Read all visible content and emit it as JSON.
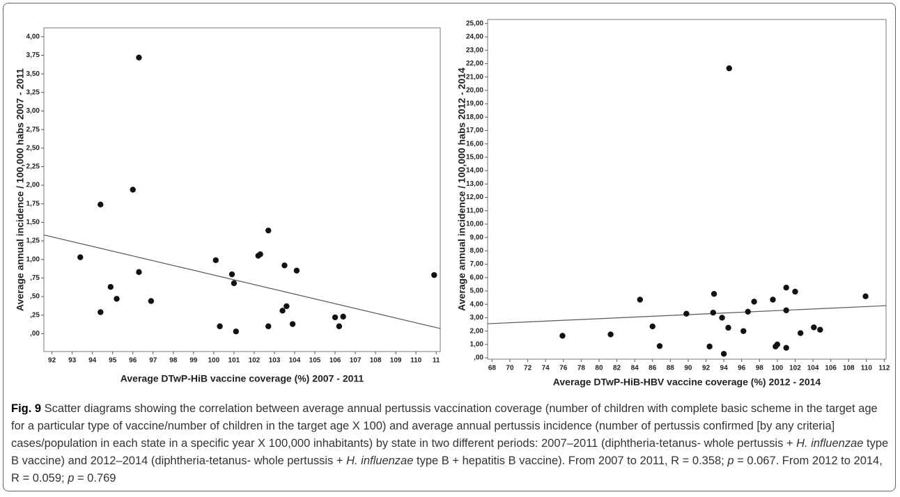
{
  "chart_data": [
    {
      "type": "scatter",
      "x_label": "Average DTwP-HiB  vaccine coverage (%) 2007 - 2011",
      "y_label": "Average annual incidence / 100,000 habs 2007 - 2011",
      "xlim": [
        91.6,
        111.2
      ],
      "ylim": [
        -0.24,
        4.12
      ],
      "xticks": [
        92,
        93,
        94,
        95,
        96,
        97,
        98,
        99,
        100,
        101,
        102,
        103,
        104,
        105,
        106,
        107,
        108,
        109,
        110,
        {
          "value": 111,
          "label": "11"
        }
      ],
      "yticks": [
        {
          "value": 0,
          "label": ",00"
        },
        {
          "value": 0.25,
          "label": ",25"
        },
        {
          "value": 0.5,
          "label": ",50"
        },
        {
          "value": 0.75,
          "label": ",75"
        },
        {
          "value": 1,
          "label": "1,00"
        },
        {
          "value": 1.25,
          "label": "1,25"
        },
        {
          "value": 1.5,
          "label": "1,50"
        },
        {
          "value": 1.75,
          "label": "1,75"
        },
        {
          "value": 2,
          "label": "2,00"
        },
        {
          "value": 2.25,
          "label": "2,25"
        },
        {
          "value": 2.5,
          "label": "2,50"
        },
        {
          "value": 2.75,
          "label": "2,75"
        },
        {
          "value": 3,
          "label": "3,00"
        },
        {
          "value": 3.25,
          "label": "3,25"
        },
        {
          "value": 3.5,
          "label": "3,50"
        },
        {
          "value": 3.75,
          "label": "3,75"
        },
        {
          "value": 4,
          "label": "4,00"
        }
      ],
      "color": "#111111",
      "x": [
        93.4,
        94.4,
        94.4,
        94.9,
        95.2,
        96.0,
        96.3,
        96.3,
        96.9,
        100.1,
        100.3,
        100.9,
        101.0,
        101.1,
        102.2,
        102.3,
        102.7,
        102.7,
        103.4,
        103.5,
        103.6,
        103.9,
        104.1,
        106.0,
        106.2,
        106.4,
        110.9
      ],
      "values": [
        1.03,
        1.74,
        0.29,
        0.63,
        0.47,
        1.94,
        3.72,
        0.83,
        0.44,
        0.99,
        0.1,
        0.8,
        0.68,
        0.03,
        1.05,
        1.07,
        1.39,
        0.1,
        0.31,
        0.92,
        0.37,
        0.13,
        0.85,
        0.22,
        0.1,
        0.23,
        0.79
      ],
      "fit_line": {
        "x": [
          91.6,
          111.2
        ],
        "y": [
          1.33,
          0.07
        ]
      }
    },
    {
      "type": "scatter",
      "x_label": "Average DTwP-HiB-HBV vaccine coverage (%) 2012 - 2014",
      "y_label": "Average annual incidence / 100,000 habs 2012 - 2014",
      "xlim": [
        67.5,
        112.2
      ],
      "ylim": [
        -0.1,
        25.3
      ],
      "xticks": [
        68,
        70,
        72,
        74,
        76,
        78,
        80,
        82,
        84,
        86,
        88,
        90,
        92,
        94,
        96,
        98,
        100,
        102,
        104,
        106,
        108,
        110,
        112
      ],
      "yticks": [
        {
          "value": 0,
          "label": ",00"
        },
        {
          "value": 1,
          "label": "1,00"
        },
        {
          "value": 2,
          "label": "2,00"
        },
        {
          "value": 3,
          "label": "3,00"
        },
        {
          "value": 4,
          "label": "4,00"
        },
        {
          "value": 5,
          "label": "5,00"
        },
        {
          "value": 6,
          "label": "6,00"
        },
        {
          "value": 7,
          "label": "7,00"
        },
        {
          "value": 8,
          "label": "8,00"
        },
        {
          "value": 9,
          "label": "9,00"
        },
        {
          "value": 10,
          "label": "10,00"
        },
        {
          "value": 11,
          "label": "11,00"
        },
        {
          "value": 12,
          "label": "12,00"
        },
        {
          "value": 13,
          "label": "13,00"
        },
        {
          "value": 14,
          "label": "14,00"
        },
        {
          "value": 15,
          "label": "15,00"
        },
        {
          "value": 16,
          "label": "16,00"
        },
        {
          "value": 17,
          "label": "17,00"
        },
        {
          "value": 18,
          "label": "18,00"
        },
        {
          "value": 19,
          "label": "19,00"
        },
        {
          "value": 20,
          "label": "20,00"
        },
        {
          "value": 21,
          "label": "21,00"
        },
        {
          "value": 22,
          "label": "22,00"
        },
        {
          "value": 23,
          "label": "23,00"
        },
        {
          "value": 24,
          "label": "24,00"
        },
        {
          "value": 25,
          "label": "25,00"
        }
      ],
      "color": "#111111",
      "x": [
        75.9,
        81.3,
        84.6,
        86.0,
        86.8,
        89.8,
        92.4,
        92.8,
        92.9,
        93.8,
        94.0,
        94.5,
        94.6,
        96.2,
        96.7,
        97.4,
        99.5,
        99.8,
        100.0,
        101.0,
        101.0,
        101.0,
        102.0,
        102.6,
        104.1,
        104.8,
        109.9
      ],
      "values": [
        1.65,
        1.75,
        4.35,
        2.35,
        0.88,
        3.3,
        0.85,
        3.38,
        4.78,
        3.0,
        0.3,
        2.25,
        21.65,
        2.0,
        3.45,
        4.2,
        4.35,
        0.85,
        1.0,
        5.25,
        3.55,
        0.75,
        4.95,
        1.85,
        2.28,
        2.1,
        4.6
      ],
      "fit_line": {
        "x": [
          67.5,
          112.2
        ],
        "y": [
          2.55,
          3.9
        ]
      }
    }
  ],
  "caption": {
    "label": "Fig. 9",
    "segments": [
      {
        "text": " Scatter diagrams showing the correlation between average annual pertussis vaccination coverage (number of children with complete basic scheme in the target age for a particular type of vaccine/number of children in the target age X 100) and average annual pertussis incidence (number of pertussis confirmed [by any criteria] cases/population in each state in a specific year X 100,000 inhabitants) by state in two different periods: 2007–2011 (diphtheria-tetanus- whole pertussis + ",
        "italic": false
      },
      {
        "text": "H. influenzae",
        "italic": true
      },
      {
        "text": " type B vaccine) and 2012–2014 (diphtheria-tetanus- whole pertussis + ",
        "italic": false
      },
      {
        "text": "H. influenzae",
        "italic": true
      },
      {
        "text": " type B + hepatitis B vaccine). From 2007 to 2011, R = 0.358; ",
        "italic": false
      },
      {
        "text": "p",
        "italic": true
      },
      {
        "text": " = 0.067. From 2012 to 2014, R = 0.059; ",
        "italic": false
      },
      {
        "text": "p",
        "italic": true
      },
      {
        "text": " = 0.769",
        "italic": false
      }
    ]
  }
}
